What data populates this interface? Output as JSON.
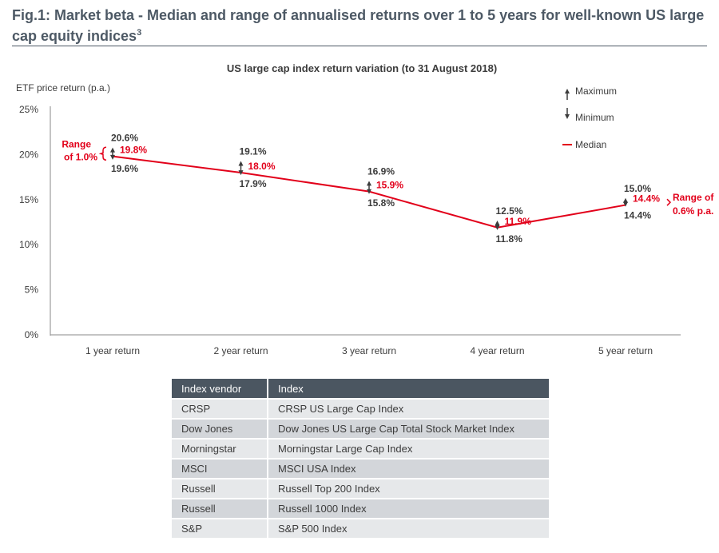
{
  "figure": {
    "title": "Fig.1: Market beta - Median and range of annualised returns over 1 to 5 years for well-known US large cap equity indices",
    "title_superscript": "3"
  },
  "chart_data": {
    "type": "line",
    "title": "US large cap index return variation (to 31 August 2018)",
    "ylabel": "ETF price return (p.a.)",
    "xlabel": "",
    "ylim": [
      0,
      25
    ],
    "yticks": [
      "0%",
      "5%",
      "10%",
      "15%",
      "20%",
      "25%"
    ],
    "ytick_values": [
      0,
      5,
      10,
      15,
      20,
      25
    ],
    "grid": false,
    "categories": [
      "1 year return",
      "2 year return",
      "3 year return",
      "4 year return",
      "5 year return"
    ],
    "series": [
      {
        "name": "Maximum",
        "values": [
          20.6,
          19.1,
          16.9,
          12.5,
          15.0
        ],
        "labels": [
          "20.6%",
          "19.1%",
          "16.9%",
          "12.5%",
          "15.0%"
        ]
      },
      {
        "name": "Minimum",
        "values": [
          19.6,
          17.9,
          15.8,
          11.8,
          14.4
        ],
        "labels": [
          "19.6%",
          "17.9%",
          "15.8%",
          "11.8%",
          "14.4%"
        ]
      },
      {
        "name": "Median",
        "values": [
          19.8,
          18.0,
          15.9,
          11.9,
          14.4
        ],
        "labels": [
          "19.8%",
          "18.0%",
          "15.9%",
          "11.9%",
          "14.4%"
        ]
      }
    ],
    "legend_position": "top-right",
    "annotations": [
      {
        "category": "1 year return",
        "lines": [
          "Range",
          "of 1.0%"
        ]
      },
      {
        "category": "5 year return",
        "lines": [
          "Range of",
          "0.6% p.a."
        ]
      }
    ],
    "colors": {
      "median": "#e2001a",
      "range": "#3c3c3c",
      "axis": "#8a8a8a",
      "text": "#3c3c3c"
    }
  },
  "table": {
    "headers": [
      "Index vendor",
      "Index"
    ],
    "rows": [
      [
        "CRSP",
        "CRSP US Large Cap Index"
      ],
      [
        "Dow Jones",
        "Dow Jones US Large Cap Total Stock Market Index"
      ],
      [
        "Morningstar",
        "Morningstar Large Cap Index"
      ],
      [
        "MSCI",
        "MSCI USA Index"
      ],
      [
        "Russell",
        "Russell Top 200 Index"
      ],
      [
        "Russell",
        "Russell 1000 Index"
      ],
      [
        "S&P",
        "S&P 500 Index"
      ]
    ],
    "header_color": "#4b5661",
    "row_colors": [
      "#e6e8ea",
      "#d3d6da"
    ]
  }
}
